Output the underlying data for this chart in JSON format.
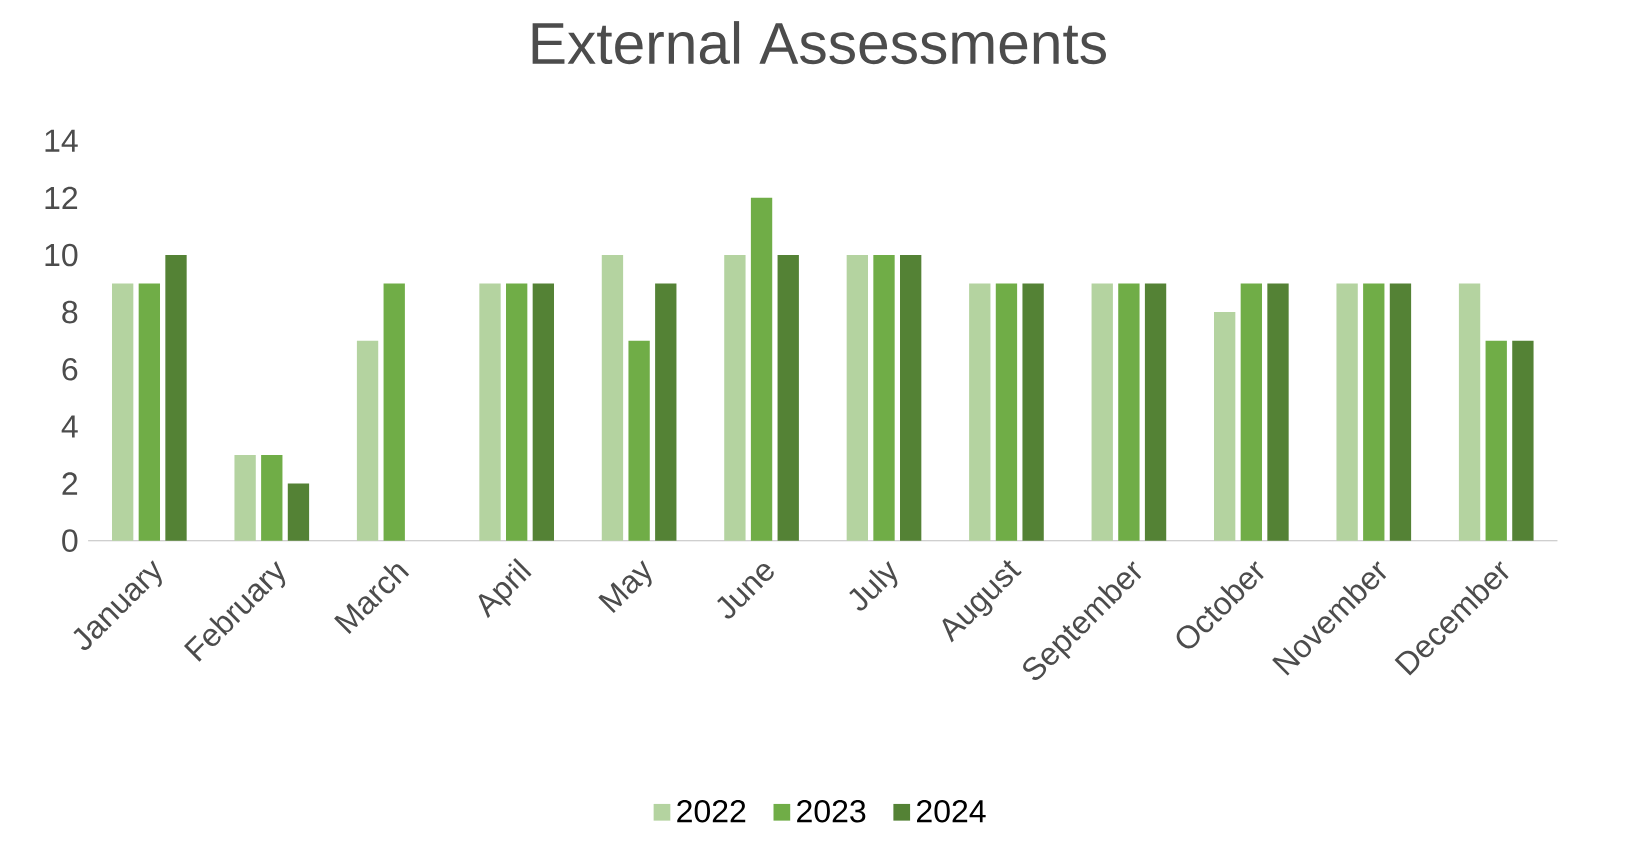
{
  "chart_data": {
    "type": "bar",
    "title": "External Assessments",
    "categories": [
      "January",
      "February",
      "March",
      "April",
      "May",
      "June",
      "July",
      "August",
      "September",
      "October",
      "November",
      "December"
    ],
    "series": [
      {
        "name": "2022",
        "color": "#b4d3a0",
        "values": [
          9,
          3,
          7,
          9,
          10,
          10,
          10,
          9,
          9,
          8,
          9,
          9
        ]
      },
      {
        "name": "2023",
        "color": "#70ad47",
        "values": [
          9,
          3,
          9,
          9,
          7,
          12,
          10,
          9,
          9,
          9,
          9,
          7
        ]
      },
      {
        "name": "2024",
        "color": "#548235",
        "values": [
          10,
          2,
          null,
          9,
          9,
          10,
          10,
          9,
          9,
          9,
          9,
          7
        ]
      }
    ],
    "ylim": [
      0,
      14
    ],
    "yticks": [
      0,
      2,
      4,
      6,
      8,
      10,
      12,
      14
    ],
    "grid": false,
    "legend": "bottom"
  }
}
